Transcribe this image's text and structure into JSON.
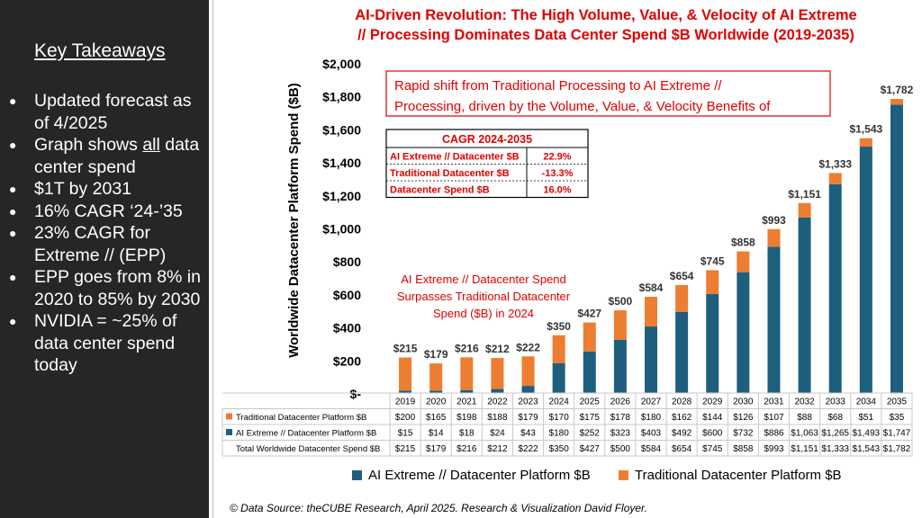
{
  "left_panel": {
    "title": "Key Takeaways",
    "bullets": [
      {
        "pre": "Updated forecast as of 4/2025",
        "u": "",
        "post": ""
      },
      {
        "pre": "Graph shows ",
        "u": "all",
        "post": " data center spend"
      },
      {
        "pre": "$1T by 2031",
        "u": "",
        "post": ""
      },
      {
        "pre": "16% CAGR ‘24-’35",
        "u": "",
        "post": ""
      },
      {
        "pre": "23% CAGR for Extreme // (EPP)",
        "u": "",
        "post": ""
      },
      {
        "pre": "EPP goes from 8% in 2020 to 85% by 2030",
        "u": "",
        "post": ""
      },
      {
        "pre": "NVIDIA = ~25% of data center spend today",
        "u": "",
        "post": ""
      }
    ]
  },
  "colors": {
    "ai": "#1f5f7e",
    "trad": "#ed7d31",
    "title": "#e00000",
    "left_bg": "#262626"
  },
  "chart_data": {
    "type": "bar",
    "stacked": true,
    "title": "AI-Driven Revolution: The High Volume, Value, & Velocity of AI Extreme // Processing Dominates Data Center Spend $B Worldwide (2019-2035)",
    "title_lines": [
      "AI-Driven Revolution: The High Volume, Value, & Velocity of AI Extreme",
      "// Processing Dominates Data Center Spend $B Worldwide (2019-2035)"
    ],
    "ylabel": "Worldwide Datacenter Platform Spend ($B)",
    "ylim": [
      0,
      2000
    ],
    "yticks": [
      0,
      200,
      400,
      600,
      800,
      1000,
      1200,
      1400,
      1600,
      1800,
      2000
    ],
    "ytick_labels": [
      "$-",
      "$200",
      "$400",
      "$600",
      "$800",
      "$1,000",
      "$1,200",
      "$1,400",
      "$1,600",
      "$1,800",
      "$2,000"
    ],
    "categories": [
      "2019",
      "2020",
      "2021",
      "2022",
      "2023",
      "2024",
      "2025",
      "2026",
      "2027",
      "2028",
      "2029",
      "2030",
      "2031",
      "2032",
      "2033",
      "2034",
      "2035"
    ],
    "series": [
      {
        "name": "AI Extreme // Datacenter Platform $B",
        "values": [
          15,
          14,
          18,
          24,
          43,
          180,
          252,
          323,
          403,
          492,
          600,
          732,
          886,
          1063,
          1265,
          1493,
          1747
        ],
        "table_labels": [
          "$15",
          "$14",
          "$18",
          "$24",
          "$43",
          "$180",
          "$252",
          "$323",
          "$403",
          "$492",
          "$600",
          "$732",
          "$886",
          "$1,063",
          "$1,265",
          "$1,493",
          "$1,747"
        ]
      },
      {
        "name": "Traditional Datacenter Platform $B",
        "values": [
          200,
          165,
          198,
          188,
          179,
          170,
          175,
          178,
          180,
          162,
          144,
          126,
          107,
          88,
          68,
          51,
          35
        ],
        "table_labels": [
          "$200",
          "$165",
          "$198",
          "$188",
          "$179",
          "$170",
          "$175",
          "$178",
          "$180",
          "$162",
          "$144",
          "$126",
          "$107",
          "$88",
          "$68",
          "$51",
          "$35"
        ]
      }
    ],
    "totals": [
      215,
      179,
      216,
      212,
      222,
      350,
      427,
      500,
      584,
      654,
      745,
      858,
      993,
      1151,
      1333,
      1543,
      1782
    ],
    "total_labels": [
      "$215",
      "$179",
      "$216",
      "$212",
      "$222",
      "$350",
      "$427",
      "$500",
      "$584",
      "$654",
      "$745",
      "$858",
      "$993",
      "$1,151",
      "$1,333",
      "$1,543",
      "$1,782"
    ],
    "table_row_labels": [
      "Traditional Datacenter Platform $B",
      "AI Extreme // Datacenter Platform $B",
      "Total Worldwide Datacenter Spend $B"
    ],
    "legend": [
      "AI Extreme // Datacenter Platform $B",
      "Traditional Datacenter Platform $B"
    ],
    "legend_position": "bottom",
    "grid": false,
    "callout": "Rapid shift from Traditional Processing to AI Extreme // Processing, driven by the Volume, Value, & Velocity Benefits of",
    "callout_lines": [
      "Rapid shift from Traditional Processing to AI Extreme //",
      "Processing, driven by the Volume, Value, & Velocity Benefits of"
    ],
    "cagr_table": {
      "header": "CAGR 2024-2035",
      "rows": [
        {
          "label": "AI Extreme // Datacenter $B",
          "value": "22.9%"
        },
        {
          "label": "Traditional Datacenter $B",
          "value": "-13.3%"
        },
        {
          "label": "Datacenter Spend $B",
          "value": "16.0%"
        }
      ]
    },
    "annotation": "AI Extreme // Datacenter Spend Surpasses Traditional Datacenter Spend ($B) in 2024",
    "annotation_lines": [
      "AI Extreme // Datacenter Spend",
      "Surpasses Traditional Datacenter",
      "Spend ($B) in 2024"
    ],
    "source": "© Data Source: theCUBE Research, April 2025. Research & Visualization David Floyer."
  }
}
